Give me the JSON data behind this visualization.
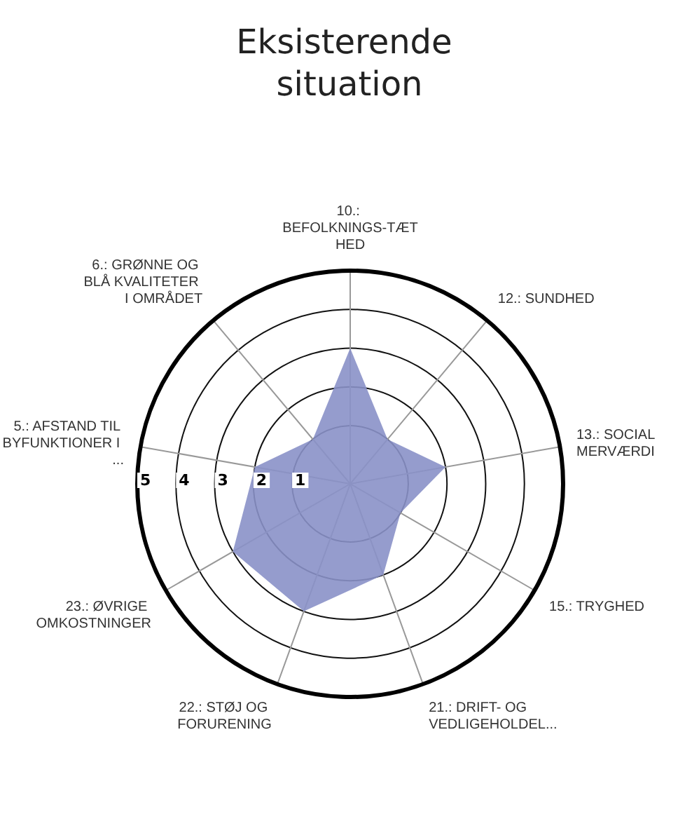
{
  "chart_data": {
    "type": "radar",
    "title": "Eksisterende situation",
    "categories": [
      "10.: BEFOLKNINGS-TÆTHED",
      "12.: SUNDHED",
      "13.: SOCIAL MERVÆRDI",
      "15.: TRYGHED",
      "21.: DRIFT- OG VEDLIGEHOLDEL...",
      "22.: STØJ OG FORURENING",
      "23.: ØVRIGE OMKOSTNINGER",
      "5.: AFSTAND TIL BYFUNKTIONER I ...",
      "6.: GRØNNE OG BLÅ KVALITETER I OMRÅDET"
    ],
    "series": [
      {
        "color": "#8a91c8",
        "values": [
          3,
          1,
          2,
          1,
          2,
          3,
          3,
          2,
          1
        ]
      }
    ],
    "ylim": [
      -0.5,
      5
    ],
    "yticks": [
      1,
      2,
      3,
      4,
      5
    ],
    "grid": true
  }
}
